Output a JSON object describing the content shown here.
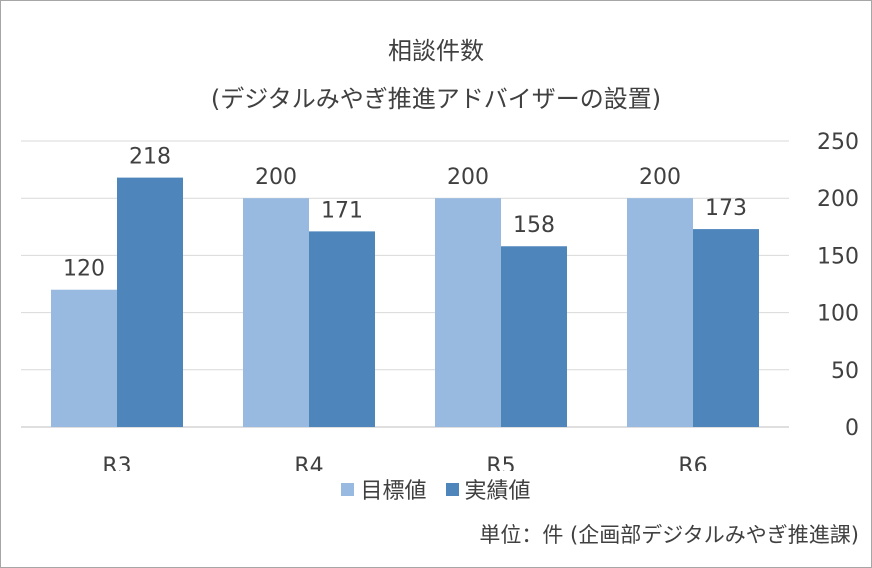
{
  "chart_data": {
    "type": "bar",
    "title": "相談件数",
    "subtitle": "(デジタルみやぎ推進アドバイザーの設置)",
    "categories": [
      "R3",
      "R4",
      "R5",
      "R6"
    ],
    "series": [
      {
        "name": "目標値",
        "values": [
          120,
          200,
          200,
          200
        ],
        "color": "#98b9e0"
      },
      {
        "name": "実績値",
        "values": [
          218,
          171,
          158,
          173
        ],
        "color": "#4e86bb"
      }
    ],
    "ylim": [
      0,
      250
    ],
    "yticks": [
      0,
      50,
      100,
      150,
      200,
      250
    ],
    "yaxis_side": "right",
    "grid": true,
    "legend_position": "bottom"
  },
  "footnote": "単位：件 (企画部デジタルみやぎ推進課)"
}
